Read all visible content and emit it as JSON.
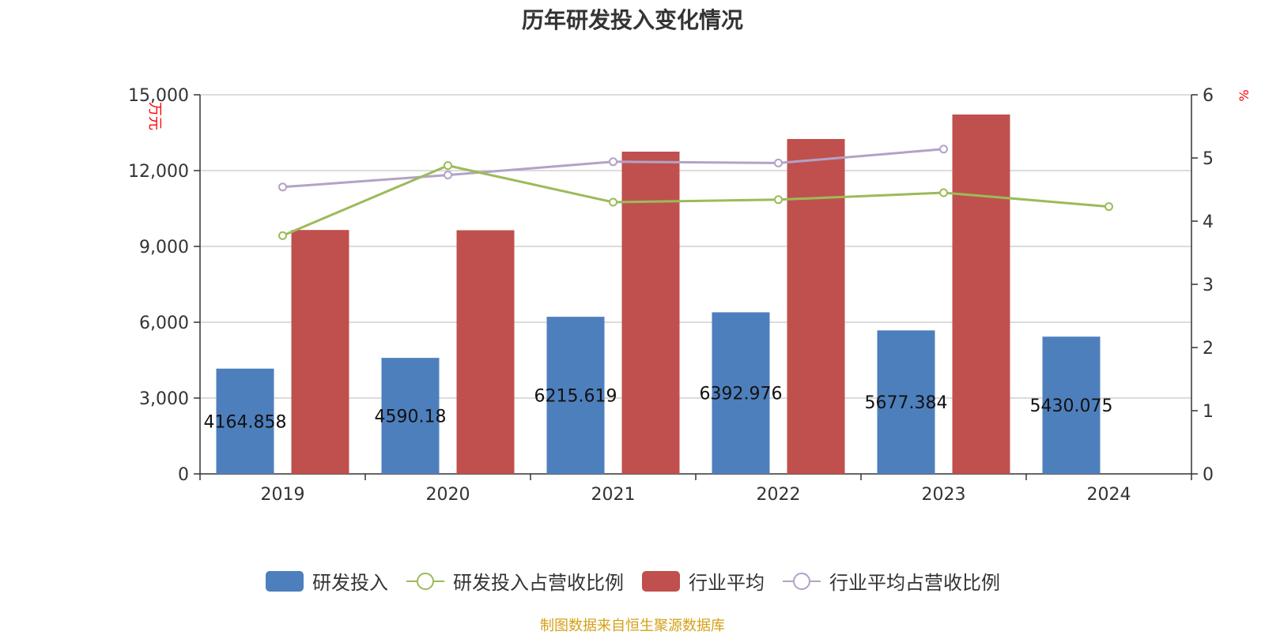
{
  "title": "历年研发投入变化情况",
  "source_note": "制图数据来自恒生聚源数据库",
  "colors": {
    "rd_bar": "#4e7fbd",
    "industry_bar": "#c0504d",
    "rd_ratio_line": "#9bbb59",
    "industry_ratio_line": "#b3a2c7",
    "unit_text": "#ff0000"
  },
  "chart_data": {
    "type": "bar",
    "categories": [
      "2019",
      "2020",
      "2021",
      "2022",
      "2023",
      "2024"
    ],
    "y_left": {
      "label": "万元",
      "min": 0,
      "max": 15000,
      "ticks": [
        "0",
        "3,000",
        "6,000",
        "9,000",
        "12,000",
        "15,000"
      ]
    },
    "y_right": {
      "label": "%",
      "min": 0,
      "max": 6,
      "ticks": [
        "0",
        "1",
        "2",
        "3",
        "4",
        "5",
        "6"
      ]
    },
    "grid": true,
    "legend_position": "bottom",
    "series": [
      {
        "name": "研发投入",
        "type": "bar",
        "axis": "left",
        "values": [
          4164.858,
          4590.18,
          6215.619,
          6392.976,
          5677.384,
          5430.075
        ],
        "labels": [
          "4164.858",
          "4590.18",
          "6215.619",
          "6392.976",
          "5677.384",
          "5430.075"
        ]
      },
      {
        "name": "研发投入占营收比例",
        "type": "line",
        "axis": "right",
        "values": [
          3.77,
          4.88,
          4.3,
          4.34,
          4.45,
          4.23
        ]
      },
      {
        "name": "行业平均",
        "type": "bar",
        "axis": "left",
        "values": [
          9650,
          9640,
          12750,
          13250,
          14220,
          null
        ]
      },
      {
        "name": "行业平均占营收比例",
        "type": "line",
        "axis": "right",
        "values": [
          4.54,
          4.73,
          4.94,
          4.92,
          5.14,
          null
        ]
      }
    ]
  }
}
